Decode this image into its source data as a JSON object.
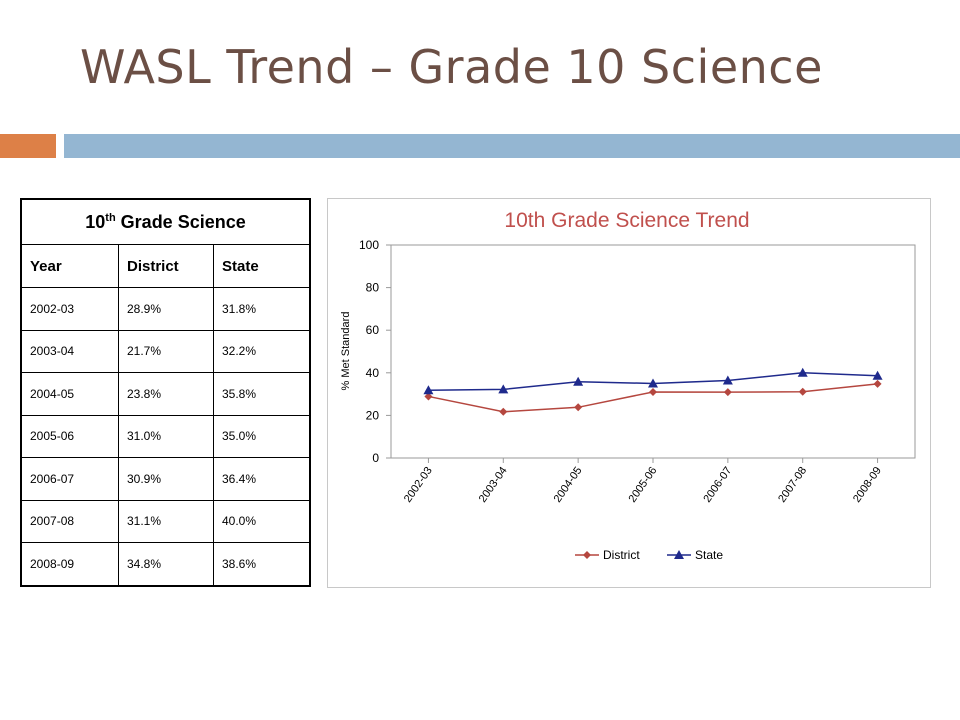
{
  "slide": {
    "title": "WASL Trend – Grade 10 Science",
    "accent_colors": {
      "orange": "#dd8047",
      "blue": "#94b6d2"
    }
  },
  "table": {
    "caption_main": "10",
    "caption_sup": "th",
    "caption_rest": " Grade Science",
    "headers": [
      "Year",
      "District",
      "State"
    ],
    "rows": [
      [
        "2002-03",
        "28.9%",
        "31.8%"
      ],
      [
        "2003-04",
        "21.7%",
        "32.2%"
      ],
      [
        "2004-05",
        "23.8%",
        "35.8%"
      ],
      [
        "2005-06",
        "31.0%",
        "35.0%"
      ],
      [
        "2006-07",
        "30.9%",
        "36.4%"
      ],
      [
        "2007-08",
        "31.1%",
        "40.0%"
      ],
      [
        "2008-09",
        "34.8%",
        "38.6%"
      ]
    ]
  },
  "chart_data": {
    "type": "line",
    "title": "10th Grade Science Trend",
    "xlabel": "",
    "ylabel": "% Met Standard",
    "categories": [
      "2002-03",
      "2003-04",
      "2004-05",
      "2005-06",
      "2006-07",
      "2007-08",
      "2008-09"
    ],
    "ylim": [
      0,
      100
    ],
    "yticks": [
      0,
      20,
      40,
      60,
      80,
      100
    ],
    "grid": false,
    "legend_position": "bottom",
    "title_color": "#c0504d",
    "series": [
      {
        "name": "District",
        "values": [
          28.9,
          21.7,
          23.8,
          31.0,
          30.9,
          31.1,
          34.8
        ],
        "color": "#b5473f",
        "marker": "diamond"
      },
      {
        "name": "State",
        "values": [
          31.8,
          32.2,
          35.8,
          35.0,
          36.4,
          40.0,
          38.6
        ],
        "color": "#1f2a8c",
        "marker": "triangle"
      }
    ]
  }
}
